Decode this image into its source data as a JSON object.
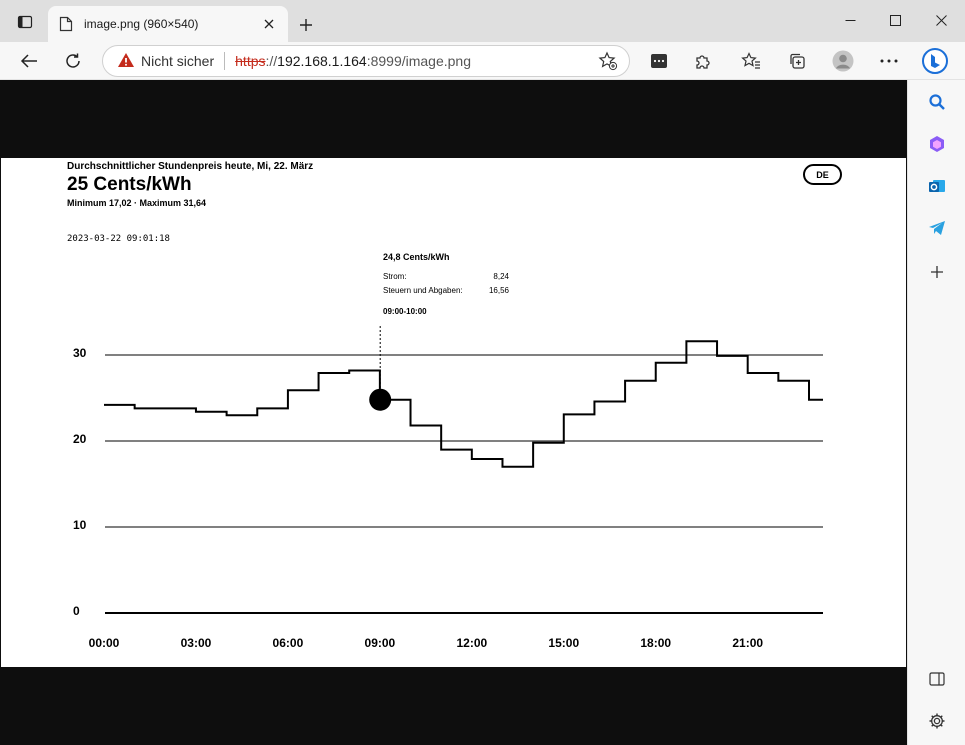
{
  "browser": {
    "tab_title": "image.png (960×540)",
    "address": {
      "security_label": "Nicht sicher",
      "scheme": "https",
      "separator": "://",
      "host": "192.168.1.164",
      "port_path": ":8999/image.png"
    },
    "icons": {
      "tab_actions": "tab-actions-icon",
      "favicon": "page-icon",
      "close_tab": "close-icon",
      "new_tab": "plus-icon",
      "minimize": "minimize-icon",
      "maximize": "maximize-icon",
      "close_window": "close-icon",
      "back": "back-arrow-icon",
      "refresh": "refresh-icon",
      "warning": "warning-icon",
      "favorite": "add-favorite-icon",
      "extension_media": "media-icon",
      "extensions": "puzzle-icon",
      "favorites": "favorites-icon",
      "collections": "collections-icon",
      "profile": "avatar-icon",
      "more": "more-icon",
      "bing": "bing-icon"
    },
    "sidebar_icons": [
      "search-icon",
      "copilot-icon",
      "outlook-icon",
      "telegram-icon",
      "plus-icon",
      "split-screen-icon",
      "settings-icon"
    ]
  },
  "chart_header": {
    "subtitle": "Durchschnittlicher Stundenpreis heute, Mi, 22. März",
    "price": "25 Cents/kWh",
    "minmax": "Minimum 17,02 · Maximum 31,64",
    "timestamp": "2023-03-22 09:01:18",
    "lang": "DE"
  },
  "tooltip": {
    "title": "24,8 Cents/kWh",
    "rows": [
      {
        "label": "Strom:",
        "value": "8,24"
      },
      {
        "label": "Steuern und Abgaben:",
        "value": "16,56"
      }
    ],
    "time": "09:00-10:00"
  },
  "chart_data": {
    "type": "line",
    "step": true,
    "x_tick_labels": [
      "00:00",
      "03:00",
      "06:00",
      "09:00",
      "12:00",
      "15:00",
      "18:00",
      "21:00"
    ],
    "y_ticks": [
      0,
      10,
      20,
      30
    ],
    "ylim": [
      0,
      30
    ],
    "xlim": [
      0,
      23
    ],
    "x": [
      0,
      1,
      2,
      3,
      4,
      5,
      6,
      7,
      8,
      9,
      10,
      11,
      12,
      13,
      14,
      15,
      16,
      17,
      18,
      19,
      20,
      21,
      22,
      23
    ],
    "values": [
      24.2,
      23.8,
      23.8,
      23.4,
      23.0,
      23.8,
      25.9,
      27.9,
      28.2,
      24.8,
      21.8,
      19.0,
      17.9,
      17.0,
      19.8,
      23.1,
      24.6,
      27.0,
      29.1,
      31.6,
      29.9,
      27.9,
      27.0,
      24.8
    ],
    "highlight": {
      "x": 9,
      "y": 24.8
    },
    "grid": true,
    "colors": {
      "line": "#000000",
      "grid": "#000000"
    }
  }
}
